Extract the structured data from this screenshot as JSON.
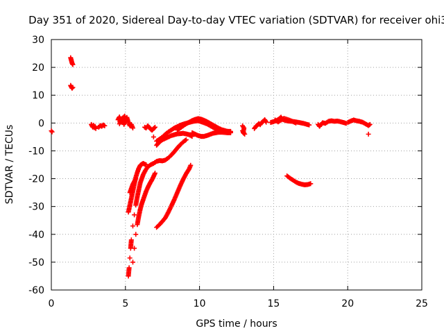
{
  "chart_data": {
    "type": "scatter",
    "title": "Day 351 of 2020, Sidereal Day-to-day VTEC variation (SDTVAR) for receiver ohi3",
    "xlabel": "GPS time / hours",
    "ylabel": "SDTVAR / TECUs",
    "xlim": [
      0,
      25
    ],
    "ylim": [
      -60,
      30
    ],
    "xticks": [
      0,
      5,
      10,
      15,
      20,
      25
    ],
    "yticks": [
      -60,
      -50,
      -40,
      -30,
      -20,
      -10,
      0,
      10,
      20,
      30
    ],
    "grid": true,
    "marker": "plus",
    "color": "#ff0000",
    "series": [
      {
        "name": "seg-start",
        "points": [
          [
            0.0,
            -2.8
          ],
          [
            0.05,
            -3.2
          ]
        ]
      },
      {
        "name": "seg-high",
        "points": [
          [
            1.3,
            23.5
          ],
          [
            1.35,
            22.5
          ],
          [
            1.4,
            21.5
          ],
          [
            1.45,
            21.0
          ],
          [
            1.3,
            13.5
          ],
          [
            1.35,
            13.0
          ],
          [
            1.4,
            12.5
          ],
          [
            1.45,
            12.8
          ]
        ]
      },
      {
        "name": "seg-2.8",
        "points": [
          [
            2.7,
            -0.5
          ],
          [
            2.75,
            -1.0
          ],
          [
            2.8,
            -1.5
          ],
          [
            2.85,
            -0.8
          ],
          [
            2.9,
            -1.7
          ],
          [
            2.95,
            -1.2
          ],
          [
            3.0,
            -2.0
          ]
        ]
      },
      {
        "name": "seg-3.4",
        "points": [
          [
            3.2,
            -1.5
          ],
          [
            3.3,
            -0.9
          ],
          [
            3.4,
            -1.2
          ],
          [
            3.5,
            -0.7
          ],
          [
            3.6,
            -1.0
          ]
        ]
      },
      {
        "name": "seg-4.8",
        "points": [
          [
            4.5,
            1.2
          ],
          [
            4.6,
            2.2
          ],
          [
            4.7,
            0.5
          ],
          [
            4.8,
            1.8
          ],
          [
            4.9,
            -0.5
          ],
          [
            5.0,
            1.0
          ],
          [
            5.1,
            2.0
          ],
          [
            5.2,
            0.3
          ],
          [
            5.3,
            -1.0
          ],
          [
            5.4,
            -0.5
          ],
          [
            5.5,
            -1.8
          ],
          [
            4.6,
            -0.3
          ],
          [
            4.75,
            1.5
          ],
          [
            4.95,
            2.5
          ]
        ]
      },
      {
        "name": "seg-6.5",
        "points": [
          [
            6.3,
            -1.5
          ],
          [
            6.4,
            -1.8
          ],
          [
            6.5,
            -1.0
          ],
          [
            6.6,
            -1.5
          ],
          [
            6.7,
            -2.2
          ],
          [
            6.8,
            -2.6
          ],
          [
            6.9,
            -2.0
          ],
          [
            7.0,
            -1.5
          ],
          [
            6.9,
            -5.0
          ]
        ]
      },
      {
        "name": "arc-a",
        "points": [
          [
            7.1,
            -8.0
          ],
          [
            7.3,
            -6.8
          ],
          [
            7.5,
            -6.0
          ],
          [
            7.7,
            -5.5
          ],
          [
            7.9,
            -5.0
          ],
          [
            8.1,
            -4.5
          ],
          [
            8.3,
            -4.2
          ],
          [
            8.5,
            -3.9
          ],
          [
            8.7,
            -3.8
          ],
          [
            8.9,
            -3.7
          ],
          [
            9.1,
            -3.9
          ],
          [
            9.3,
            -4.2
          ],
          [
            9.5,
            -4.8
          ]
        ]
      },
      {
        "name": "arc-b",
        "points": [
          [
            7.1,
            -6.5
          ],
          [
            7.3,
            -5.8
          ],
          [
            7.5,
            -5.0
          ],
          [
            7.7,
            -4.0
          ],
          [
            7.9,
            -3.2
          ],
          [
            8.1,
            -2.5
          ],
          [
            8.3,
            -1.8
          ],
          [
            8.5,
            -1.3
          ],
          [
            8.7,
            -0.8
          ],
          [
            8.9,
            -0.4
          ],
          [
            9.1,
            -0.1
          ],
          [
            9.3,
            0.2
          ],
          [
            9.5,
            0.5
          ],
          [
            9.7,
            0.7
          ],
          [
            9.9,
            0.8
          ],
          [
            10.1,
            0.5
          ],
          [
            10.3,
            0.1
          ],
          [
            10.5,
            -0.3
          ],
          [
            10.7,
            -0.9
          ],
          [
            10.9,
            -1.5
          ],
          [
            11.1,
            -2.1
          ],
          [
            11.3,
            -2.5
          ],
          [
            11.5,
            -2.8
          ],
          [
            11.7,
            -2.9
          ],
          [
            11.9,
            -3.0
          ],
          [
            12.1,
            -3.0
          ]
        ]
      },
      {
        "name": "arc-c",
        "points": [
          [
            8.5,
            -2.5
          ],
          [
            8.7,
            -1.8
          ],
          [
            8.9,
            -1.0
          ],
          [
            9.1,
            -0.3
          ],
          [
            9.3,
            0.3
          ],
          [
            9.5,
            0.9
          ],
          [
            9.7,
            1.3
          ],
          [
            9.9,
            1.6
          ],
          [
            10.1,
            1.4
          ],
          [
            10.3,
            1.0
          ],
          [
            10.5,
            0.5
          ],
          [
            10.7,
            -0.1
          ],
          [
            10.9,
            -0.7
          ],
          [
            11.1,
            -1.3
          ],
          [
            11.3,
            -1.9
          ],
          [
            11.5,
            -2.4
          ],
          [
            11.7,
            -2.7
          ],
          [
            11.9,
            -3.0
          ],
          [
            12.1,
            -3.3
          ]
        ]
      },
      {
        "name": "arc-d",
        "points": [
          [
            9.5,
            -3.5
          ],
          [
            9.7,
            -4.0
          ],
          [
            9.9,
            -4.5
          ],
          [
            10.1,
            -4.8
          ],
          [
            10.3,
            -4.8
          ],
          [
            10.5,
            -4.5
          ],
          [
            10.7,
            -4.1
          ],
          [
            10.9,
            -3.7
          ],
          [
            11.1,
            -3.5
          ],
          [
            11.3,
            -3.3
          ],
          [
            11.5,
            -3.3
          ],
          [
            11.7,
            -3.4
          ],
          [
            11.9,
            -3.5
          ],
          [
            12.1,
            -3.5
          ]
        ]
      },
      {
        "name": "desc-1",
        "points": [
          [
            5.2,
            -55.0
          ],
          [
            5.25,
            -52.0
          ],
          [
            5.3,
            -48.5
          ],
          [
            5.35,
            -45.0
          ],
          [
            5.4,
            -42.0
          ],
          [
            5.5,
            -37.0
          ],
          [
            5.6,
            -33.0
          ],
          [
            5.7,
            -29.5
          ],
          [
            5.8,
            -26.5
          ],
          [
            5.9,
            -24.0
          ],
          [
            6.0,
            -21.5
          ],
          [
            6.1,
            -20.0
          ],
          [
            6.2,
            -18.5
          ],
          [
            6.35,
            -17.0
          ],
          [
            6.5,
            -15.8
          ],
          [
            6.7,
            -15.0
          ],
          [
            6.9,
            -14.5
          ],
          [
            7.1,
            -13.8
          ],
          [
            7.3,
            -13.5
          ],
          [
            7.5,
            -13.6
          ],
          [
            7.7,
            -13.3
          ],
          [
            7.9,
            -12.5
          ],
          [
            8.1,
            -11.5
          ],
          [
            8.3,
            -10.3
          ],
          [
            8.5,
            -9.0
          ],
          [
            8.7,
            -7.8
          ],
          [
            8.9,
            -6.8
          ],
          [
            9.1,
            -6.0
          ]
        ]
      },
      {
        "name": "desc-2",
        "points": [
          [
            5.2,
            -32.0
          ],
          [
            5.3,
            -29.5
          ],
          [
            5.4,
            -27.0
          ],
          [
            5.5,
            -24.5
          ],
          [
            5.6,
            -22.0
          ],
          [
            5.7,
            -19.5
          ],
          [
            5.8,
            -17.8
          ],
          [
            5.9,
            -16.3
          ],
          [
            6.0,
            -15.2
          ],
          [
            6.1,
            -14.8
          ],
          [
            6.2,
            -14.5
          ],
          [
            6.3,
            -14.8
          ],
          [
            6.4,
            -15.0
          ]
        ]
      },
      {
        "name": "desc-3",
        "points": [
          [
            5.3,
            -25.0
          ],
          [
            5.4,
            -23.5
          ],
          [
            5.5,
            -22.0
          ],
          [
            5.6,
            -21.0
          ],
          [
            5.7,
            -20.0
          ]
        ]
      },
      {
        "name": "desc-4",
        "points": [
          [
            5.5,
            -50.0
          ],
          [
            5.6,
            -45.0
          ],
          [
            5.7,
            -40.0
          ],
          [
            5.8,
            -36.5
          ],
          [
            5.9,
            -33.5
          ],
          [
            6.0,
            -31.0
          ],
          [
            6.1,
            -29.0
          ],
          [
            6.2,
            -27.5
          ],
          [
            6.3,
            -26.0
          ],
          [
            6.4,
            -24.5
          ],
          [
            6.5,
            -23.3
          ],
          [
            6.6,
            -22.2
          ],
          [
            6.7,
            -21.2
          ],
          [
            6.8,
            -20.3
          ],
          [
            6.9,
            -19.2
          ],
          [
            7.0,
            -18.0
          ]
        ]
      },
      {
        "name": "desc-5",
        "points": [
          [
            7.1,
            -37.5
          ],
          [
            7.3,
            -36.5
          ],
          [
            7.5,
            -35.3
          ],
          [
            7.7,
            -34.0
          ],
          [
            7.9,
            -32.0
          ],
          [
            8.1,
            -29.8
          ],
          [
            8.3,
            -27.5
          ],
          [
            8.5,
            -25.0
          ],
          [
            8.7,
            -22.5
          ],
          [
            8.9,
            -20.2
          ],
          [
            9.1,
            -18.2
          ],
          [
            9.3,
            -16.5
          ],
          [
            9.4,
            -15.2
          ]
        ]
      },
      {
        "name": "seg-13",
        "points": [
          [
            12.9,
            -1.0
          ],
          [
            13.0,
            -1.8
          ],
          [
            12.95,
            -3.5
          ],
          [
            13.05,
            -4.0
          ],
          [
            12.9,
            -2.8
          ]
        ]
      },
      {
        "name": "seg-14",
        "points": [
          [
            13.7,
            -2.0
          ],
          [
            13.8,
            -1.2
          ],
          [
            13.9,
            -0.8
          ],
          [
            14.0,
            -0.2
          ],
          [
            14.1,
            -0.6
          ],
          [
            14.2,
            0.2
          ],
          [
            14.3,
            0.6
          ],
          [
            14.4,
            1.2
          ],
          [
            14.5,
            0.3
          ]
        ]
      },
      {
        "name": "seg-15-17",
        "points": [
          [
            14.8,
            0.2
          ],
          [
            15.0,
            0.5
          ],
          [
            15.2,
            0.9
          ],
          [
            15.4,
            1.6
          ],
          [
            15.5,
            2.1
          ],
          [
            15.6,
            1.3
          ],
          [
            15.8,
            0.9
          ],
          [
            16.0,
            0.7
          ],
          [
            16.2,
            0.6
          ],
          [
            16.4,
            0.5
          ],
          [
            16.6,
            0.3
          ],
          [
            16.8,
            0.1
          ],
          [
            17.0,
            -0.1
          ],
          [
            17.2,
            -0.4
          ],
          [
            17.4,
            -0.7
          ],
          [
            15.1,
            1.1
          ],
          [
            15.3,
            0.4
          ],
          [
            15.7,
            1.7
          ],
          [
            16.1,
            1.0
          ],
          [
            16.5,
            0.0
          ]
        ]
      },
      {
        "name": "arc-17",
        "points": [
          [
            15.9,
            -19.0
          ],
          [
            16.1,
            -19.8
          ],
          [
            16.3,
            -20.5
          ],
          [
            16.5,
            -21.2
          ],
          [
            16.7,
            -21.7
          ],
          [
            16.9,
            -22.0
          ],
          [
            17.1,
            -22.2
          ],
          [
            17.3,
            -22.1
          ],
          [
            17.5,
            -21.8
          ]
        ]
      },
      {
        "name": "seg-18-20",
        "points": [
          [
            18.0,
            -0.5
          ],
          [
            18.1,
            -1.2
          ],
          [
            18.3,
            0.1
          ],
          [
            18.5,
            -0.1
          ],
          [
            18.7,
            0.6
          ],
          [
            18.9,
            0.8
          ],
          [
            19.1,
            0.6
          ],
          [
            19.3,
            0.7
          ],
          [
            19.5,
            0.5
          ],
          [
            19.7,
            0.2
          ],
          [
            19.9,
            -0.1
          ]
        ]
      },
      {
        "name": "seg-20-21",
        "points": [
          [
            20.0,
            0.2
          ],
          [
            20.2,
            0.7
          ],
          [
            20.4,
            1.1
          ],
          [
            20.6,
            0.8
          ],
          [
            20.8,
            0.6
          ],
          [
            21.0,
            0.3
          ],
          [
            21.2,
            -0.3
          ],
          [
            21.4,
            -0.9
          ],
          [
            21.5,
            -0.5
          ],
          [
            21.4,
            -4.0
          ]
        ]
      }
    ]
  }
}
